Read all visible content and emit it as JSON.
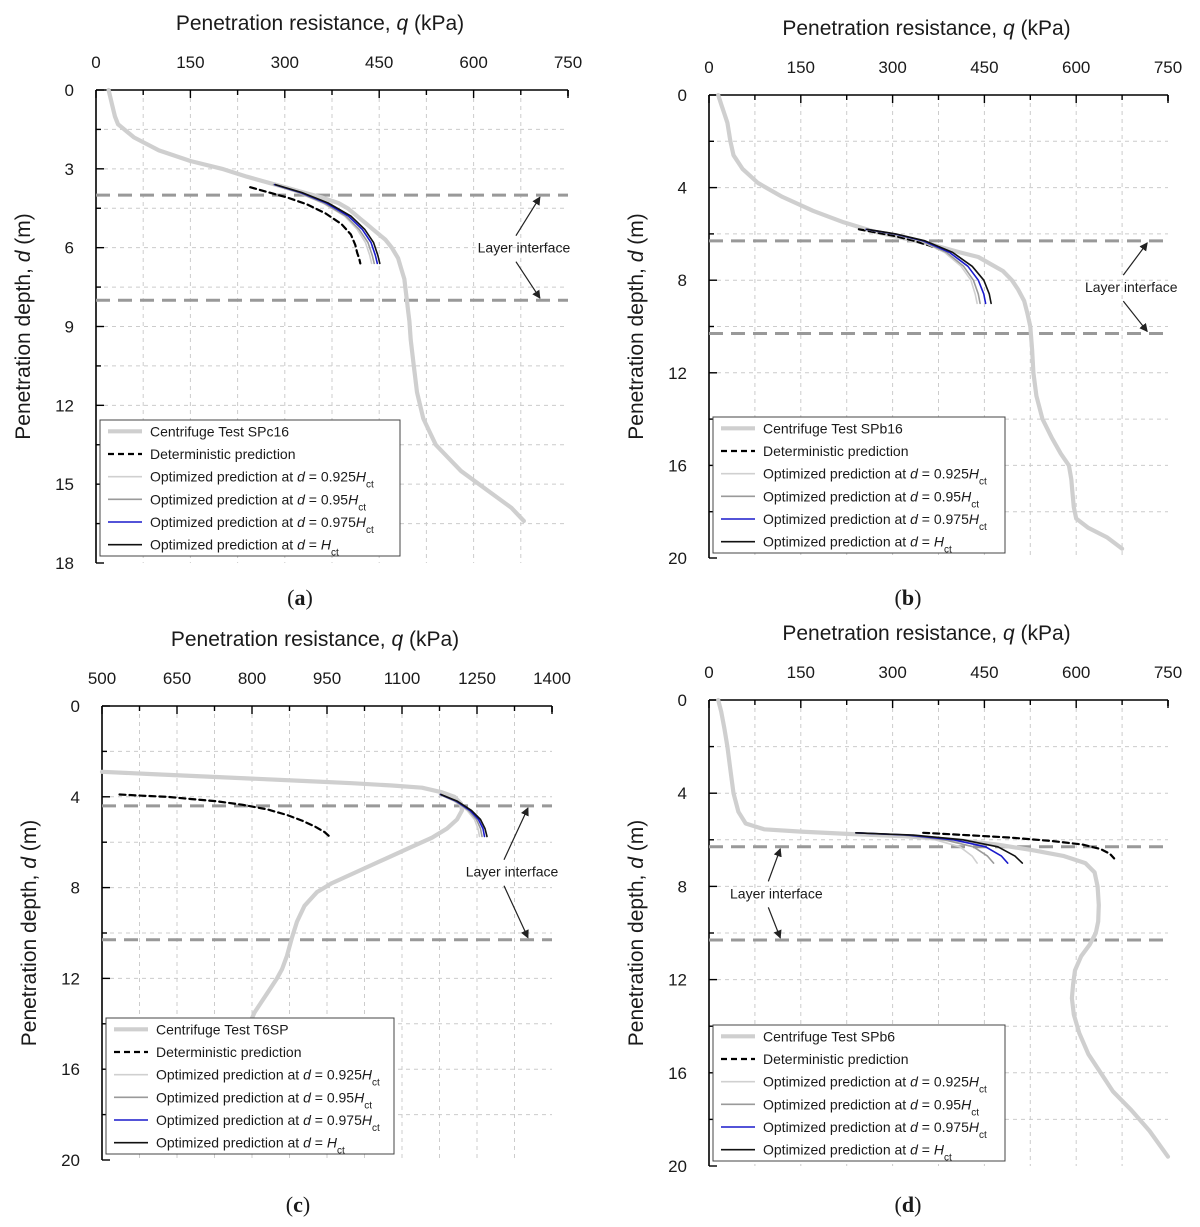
{
  "figure": {
    "captions": [
      "(a)",
      "(b)",
      "(c)",
      "(d)"
    ]
  },
  "colors": {
    "centrifuge": "#cfcfcf",
    "deterministic": "#000000",
    "opt_0925": "#d0d0d0",
    "opt_095": "#9a9a9a",
    "opt_0975": "#1a1acc",
    "opt_100": "#111111",
    "interface": "#999999",
    "grid": "#cccccc"
  },
  "chart_data": [
    {
      "id": "a",
      "type": "line",
      "caption": "(a)",
      "xlabel": "Penetration resistance, q (kPa)",
      "ylabel": "Penetration depth, d (m)",
      "x_axis_position": "top",
      "xlim": [
        0,
        750
      ],
      "xticks": [
        0,
        150,
        300,
        450,
        600,
        750
      ],
      "ylim": [
        0,
        18
      ],
      "yticks": [
        0,
        3,
        6,
        9,
        12,
        15,
        18
      ],
      "y_inverted": true,
      "legend_position": "bottom-left",
      "layer_interfaces": [
        4.0,
        8.0
      ],
      "annotation": {
        "text": "Layer interface",
        "q": 680,
        "d": 6.0
      },
      "series": [
        {
          "name": "Centrifuge Test SPc16",
          "style": "centrifuge",
          "x": [
            20,
            25,
            30,
            35,
            60,
            100,
            150,
            200,
            240,
            270,
            300,
            330,
            360,
            385,
            400,
            410,
            420,
            430,
            440,
            460,
            470,
            480,
            485,
            490,
            492,
            494,
            496,
            498,
            500,
            505,
            510,
            520,
            530,
            540,
            560,
            580,
            620,
            660,
            680
          ],
          "y": [
            0,
            0.5,
            1.0,
            1.3,
            1.8,
            2.3,
            2.7,
            3.0,
            3.3,
            3.5,
            3.7,
            3.9,
            4.1,
            4.3,
            4.5,
            4.7,
            4.9,
            5.1,
            5.3,
            5.7,
            6.0,
            6.4,
            6.8,
            7.2,
            7.6,
            8.0,
            8.4,
            8.8,
            9.5,
            10.5,
            11.5,
            12.5,
            13.0,
            13.5,
            14.0,
            14.5,
            15.2,
            15.9,
            16.4
          ]
        },
        {
          "name": "Deterministic prediction",
          "style": "deterministic",
          "x": [
            245,
            275,
            305,
            335,
            365,
            390,
            405,
            412,
            415,
            418,
            420
          ],
          "y": [
            3.7,
            3.9,
            4.1,
            4.35,
            4.7,
            5.1,
            5.5,
            5.9,
            6.2,
            6.4,
            6.6
          ]
        },
        {
          "name": "Optimized prediction at d = 0.925Hct",
          "style": "opt_0925",
          "x": [
            280,
            320,
            360,
            395,
            415,
            428,
            435,
            438
          ],
          "y": [
            3.6,
            3.9,
            4.3,
            4.8,
            5.3,
            5.8,
            6.3,
            6.6
          ]
        },
        {
          "name": "Optimized prediction at d = 0.95Hct",
          "style": "opt_095",
          "x": [
            282,
            322,
            362,
            397,
            418,
            432,
            439,
            442
          ],
          "y": [
            3.6,
            3.9,
            4.3,
            4.8,
            5.3,
            5.8,
            6.3,
            6.6
          ]
        },
        {
          "name": "Optimized prediction at d = 0.975Hct",
          "style": "opt_0975",
          "x": [
            284,
            325,
            366,
            401,
            423,
            437,
            444,
            447
          ],
          "y": [
            3.6,
            3.9,
            4.3,
            4.8,
            5.3,
            5.8,
            6.3,
            6.6
          ]
        },
        {
          "name": "Optimized prediction at d = Hct",
          "style": "opt_100",
          "x": [
            285,
            327,
            369,
            405,
            427,
            441,
            448,
            451
          ],
          "y": [
            3.6,
            3.9,
            4.3,
            4.8,
            5.3,
            5.8,
            6.3,
            6.6
          ]
        }
      ],
      "legend": [
        "Centrifuge Test SPc16",
        "Deterministic prediction",
        "Optimized prediction at d = 0.925Hct",
        "Optimized prediction at d = 0.95Hct",
        "Optimized prediction at d = 0.975Hct",
        "Optimized prediction at d = Hct"
      ]
    },
    {
      "id": "b",
      "type": "line",
      "caption": "(b)",
      "xlabel": "Penetration resistance, q (kPa)",
      "ylabel": "Penetration depth, d (m)",
      "x_axis_position": "top",
      "xlim": [
        0,
        750
      ],
      "xticks": [
        0,
        150,
        300,
        450,
        600,
        750
      ],
      "ylim": [
        0,
        20
      ],
      "yticks": [
        0,
        4,
        8,
        12,
        16,
        20
      ],
      "y_inverted": true,
      "legend_position": "bottom-left",
      "layer_interfaces": [
        6.3,
        10.3
      ],
      "annotation": {
        "text": "Layer interface",
        "q": 690,
        "d": 8.3
      },
      "series": [
        {
          "name": "Centrifuge Test SPb16",
          "style": "centrifuge",
          "x": [
            15,
            20,
            25,
            30,
            35,
            40,
            55,
            80,
            120,
            170,
            220,
            270,
            320,
            370,
            410,
            440,
            460,
            480,
            495,
            505,
            515,
            520,
            525,
            528,
            530,
            535,
            545,
            560,
            575,
            588,
            592,
            594,
            596,
            600,
            620,
            650,
            675
          ],
          "y": [
            0,
            0.4,
            0.8,
            1.2,
            2.0,
            2.6,
            3.2,
            3.8,
            4.4,
            5.0,
            5.5,
            5.9,
            6.2,
            6.5,
            6.8,
            7.0,
            7.3,
            7.6,
            8.0,
            8.4,
            8.9,
            9.4,
            10.0,
            11.0,
            12.0,
            13.0,
            14.0,
            14.8,
            15.5,
            16.0,
            16.6,
            17.2,
            17.8,
            18.3,
            18.7,
            19.1,
            19.6
          ]
        },
        {
          "name": "Deterministic prediction",
          "style": "deterministic",
          "x": [
            245,
            275,
            305,
            335,
            360,
            380
          ],
          "y": [
            5.8,
            5.95,
            6.1,
            6.3,
            6.5,
            6.7
          ]
        },
        {
          "name": "Optimized prediction at d = 0.925Hct",
          "style": "opt_0925",
          "x": [
            255,
            300,
            345,
            385,
            412,
            428,
            435,
            438
          ],
          "y": [
            5.8,
            6.0,
            6.3,
            6.8,
            7.4,
            8.0,
            8.6,
            9.0
          ]
        },
        {
          "name": "Optimized prediction at d = 0.95Hct",
          "style": "opt_095",
          "x": [
            256,
            302,
            347,
            388,
            416,
            432,
            440,
            443
          ],
          "y": [
            5.8,
            6.0,
            6.3,
            6.8,
            7.4,
            8.0,
            8.6,
            9.0
          ]
        },
        {
          "name": "Optimized prediction at d = 0.975Hct",
          "style": "opt_0975",
          "x": [
            257,
            303,
            350,
            393,
            423,
            440,
            449,
            452
          ],
          "y": [
            5.8,
            6.0,
            6.3,
            6.8,
            7.4,
            8.0,
            8.6,
            9.0
          ]
        },
        {
          "name": "Optimized prediction at d = Hct",
          "style": "opt_100",
          "x": [
            258,
            305,
            353,
            398,
            430,
            449,
            458,
            461
          ],
          "y": [
            5.8,
            6.0,
            6.3,
            6.8,
            7.4,
            8.0,
            8.6,
            9.0
          ]
        }
      ],
      "legend": [
        "Centrifuge Test SPb16",
        "Deterministic prediction",
        "Optimized prediction at d = 0.925Hct",
        "Optimized prediction at d = 0.95Hct",
        "Optimized prediction at d = 0.975Hct",
        "Optimized prediction at d = Hct"
      ]
    },
    {
      "id": "c",
      "type": "line",
      "caption": "(c)",
      "xlabel": "Penetration resistance, q (kPa)",
      "ylabel": "Penetration depth, d (m)",
      "x_axis_position": "top",
      "xlim": [
        500,
        1400
      ],
      "xticks": [
        500,
        650,
        800,
        950,
        1100,
        1250,
        1400
      ],
      "ylim": [
        0,
        20
      ],
      "yticks": [
        0,
        4,
        8,
        12,
        16,
        20
      ],
      "y_inverted": true,
      "legend_position": "bottom-left",
      "layer_interfaces": [
        4.4,
        10.3
      ],
      "annotation": {
        "text": "Layer interface",
        "q": 1320,
        "d": 7.3
      },
      "series": [
        {
          "name": "Centrifuge Test T6SP",
          "style": "centrifuge",
          "x": [
            500,
            600,
            700,
            800,
            900,
            1000,
            1080,
            1140,
            1180,
            1205,
            1218,
            1220,
            1210,
            1190,
            1160,
            1120,
            1080,
            1040,
            1000,
            960,
            930,
            905,
            890,
            880,
            875,
            870,
            860,
            850,
            835,
            820,
            805,
            795
          ],
          "y": [
            2.9,
            3.0,
            3.1,
            3.2,
            3.3,
            3.4,
            3.5,
            3.6,
            3.8,
            4.0,
            4.3,
            4.6,
            5.0,
            5.4,
            5.8,
            6.2,
            6.6,
            7.0,
            7.4,
            7.8,
            8.2,
            8.8,
            9.5,
            10.2,
            10.6,
            11.0,
            11.6,
            12.0,
            12.5,
            13.0,
            13.5,
            14.0
          ]
        },
        {
          "name": "Deterministic prediction",
          "style": "deterministic",
          "x": [
            535,
            580,
            630,
            680,
            730,
            780,
            830,
            870,
            900,
            925,
            945,
            955
          ],
          "y": [
            3.9,
            3.95,
            4.0,
            4.1,
            4.2,
            4.35,
            4.55,
            4.8,
            5.05,
            5.3,
            5.55,
            5.75
          ]
        },
        {
          "name": "Optimized prediction at d = 0.925Hct",
          "style": "opt_0925",
          "x": [
            1175,
            1205,
            1230,
            1245,
            1252,
            1255
          ],
          "y": [
            3.9,
            4.2,
            4.6,
            5.0,
            5.4,
            5.75
          ]
        },
        {
          "name": "Optimized prediction at d = 0.95Hct",
          "style": "opt_095",
          "x": [
            1176,
            1207,
            1233,
            1249,
            1257,
            1260
          ],
          "y": [
            3.9,
            4.2,
            4.6,
            5.0,
            5.4,
            5.75
          ]
        },
        {
          "name": "Optimized prediction at d = 0.975Hct",
          "style": "opt_0975",
          "x": [
            1177,
            1209,
            1236,
            1253,
            1262,
            1265
          ],
          "y": [
            3.9,
            4.2,
            4.6,
            5.0,
            5.4,
            5.75
          ]
        },
        {
          "name": "Optimized prediction at d = Hct",
          "style": "opt_100",
          "x": [
            1178,
            1211,
            1239,
            1257,
            1266,
            1270
          ],
          "y": [
            3.9,
            4.2,
            4.6,
            5.0,
            5.4,
            5.75
          ]
        }
      ],
      "legend": [
        "Centrifuge Test T6SP",
        "Deterministic prediction",
        "Optimized prediction at d = 0.925Hct",
        "Optimized prediction at d = 0.95Hct",
        "Optimized prediction at d = 0.975Hct",
        "Optimized prediction at d = Hct"
      ]
    },
    {
      "id": "d",
      "type": "line",
      "caption": "(d)",
      "xlabel": "Penetration resistance, q (kPa)",
      "ylabel": "Penetration depth, d (m)",
      "x_axis_position": "top",
      "xlim": [
        0,
        750
      ],
      "xticks": [
        0,
        150,
        300,
        450,
        600,
        750
      ],
      "ylim": [
        0,
        20
      ],
      "yticks": [
        0,
        4,
        8,
        12,
        16,
        20
      ],
      "y_inverted": true,
      "legend_position": "bottom-left",
      "layer_interfaces": [
        6.3,
        10.3
      ],
      "annotation": {
        "text": "Layer interface",
        "q": 110,
        "d": 8.3
      },
      "series": [
        {
          "name": "Centrifuge Test SPb6",
          "style": "centrifuge",
          "x": [
            15,
            20,
            25,
            30,
            35,
            40,
            48,
            60,
            90,
            150,
            230,
            320,
            400,
            470,
            530,
            580,
            615,
            630,
            635,
            637,
            636,
            632,
            622,
            608,
            598,
            595,
            593,
            596,
            605,
            620,
            640,
            660,
            690,
            720,
            750
          ],
          "y": [
            0,
            0.5,
            1.2,
            2.0,
            3.0,
            4.0,
            4.8,
            5.3,
            5.55,
            5.65,
            5.75,
            5.85,
            6.0,
            6.2,
            6.45,
            6.7,
            7.0,
            7.4,
            8.0,
            8.8,
            9.5,
            10.0,
            10.5,
            11.0,
            11.6,
            12.2,
            12.8,
            13.5,
            14.3,
            15.2,
            16.0,
            16.8,
            17.6,
            18.5,
            19.6
          ]
        },
        {
          "name": "Deterministic prediction",
          "style": "deterministic",
          "x": [
            350,
            420,
            490,
            560,
            610,
            640,
            655,
            662
          ],
          "y": [
            5.7,
            5.8,
            5.9,
            6.05,
            6.2,
            6.4,
            6.6,
            6.8
          ]
        },
        {
          "name": "Optimized prediction at d = 0.925Hct",
          "style": "opt_0925",
          "x": [
            240,
            310,
            370,
            410,
            430,
            438
          ],
          "y": [
            5.7,
            5.8,
            6.0,
            6.3,
            6.7,
            7.0
          ]
        },
        {
          "name": "Optimized prediction at d = 0.95Hct",
          "style": "opt_095",
          "x": [
            240,
            318,
            385,
            432,
            455,
            465
          ],
          "y": [
            5.7,
            5.8,
            6.0,
            6.3,
            6.7,
            7.0
          ]
        },
        {
          "name": "Optimized prediction at d = 0.975Hct",
          "style": "opt_0975",
          "x": [
            240,
            326,
            400,
            452,
            478,
            488
          ],
          "y": [
            5.7,
            5.8,
            6.0,
            6.3,
            6.7,
            7.0
          ]
        },
        {
          "name": "Optimized prediction at d = Hct",
          "style": "opt_100",
          "x": [
            240,
            334,
            415,
            472,
            500,
            512
          ],
          "y": [
            5.7,
            5.8,
            6.0,
            6.3,
            6.7,
            7.0
          ]
        }
      ],
      "legend": [
        "Centrifuge Test SPb6",
        "Deterministic prediction",
        "Optimized prediction at d = 0.925Hct",
        "Optimized prediction at d = 0.95Hct",
        "Optimized prediction at d = 0.975Hct",
        "Optimized prediction at d = Hct"
      ]
    }
  ]
}
